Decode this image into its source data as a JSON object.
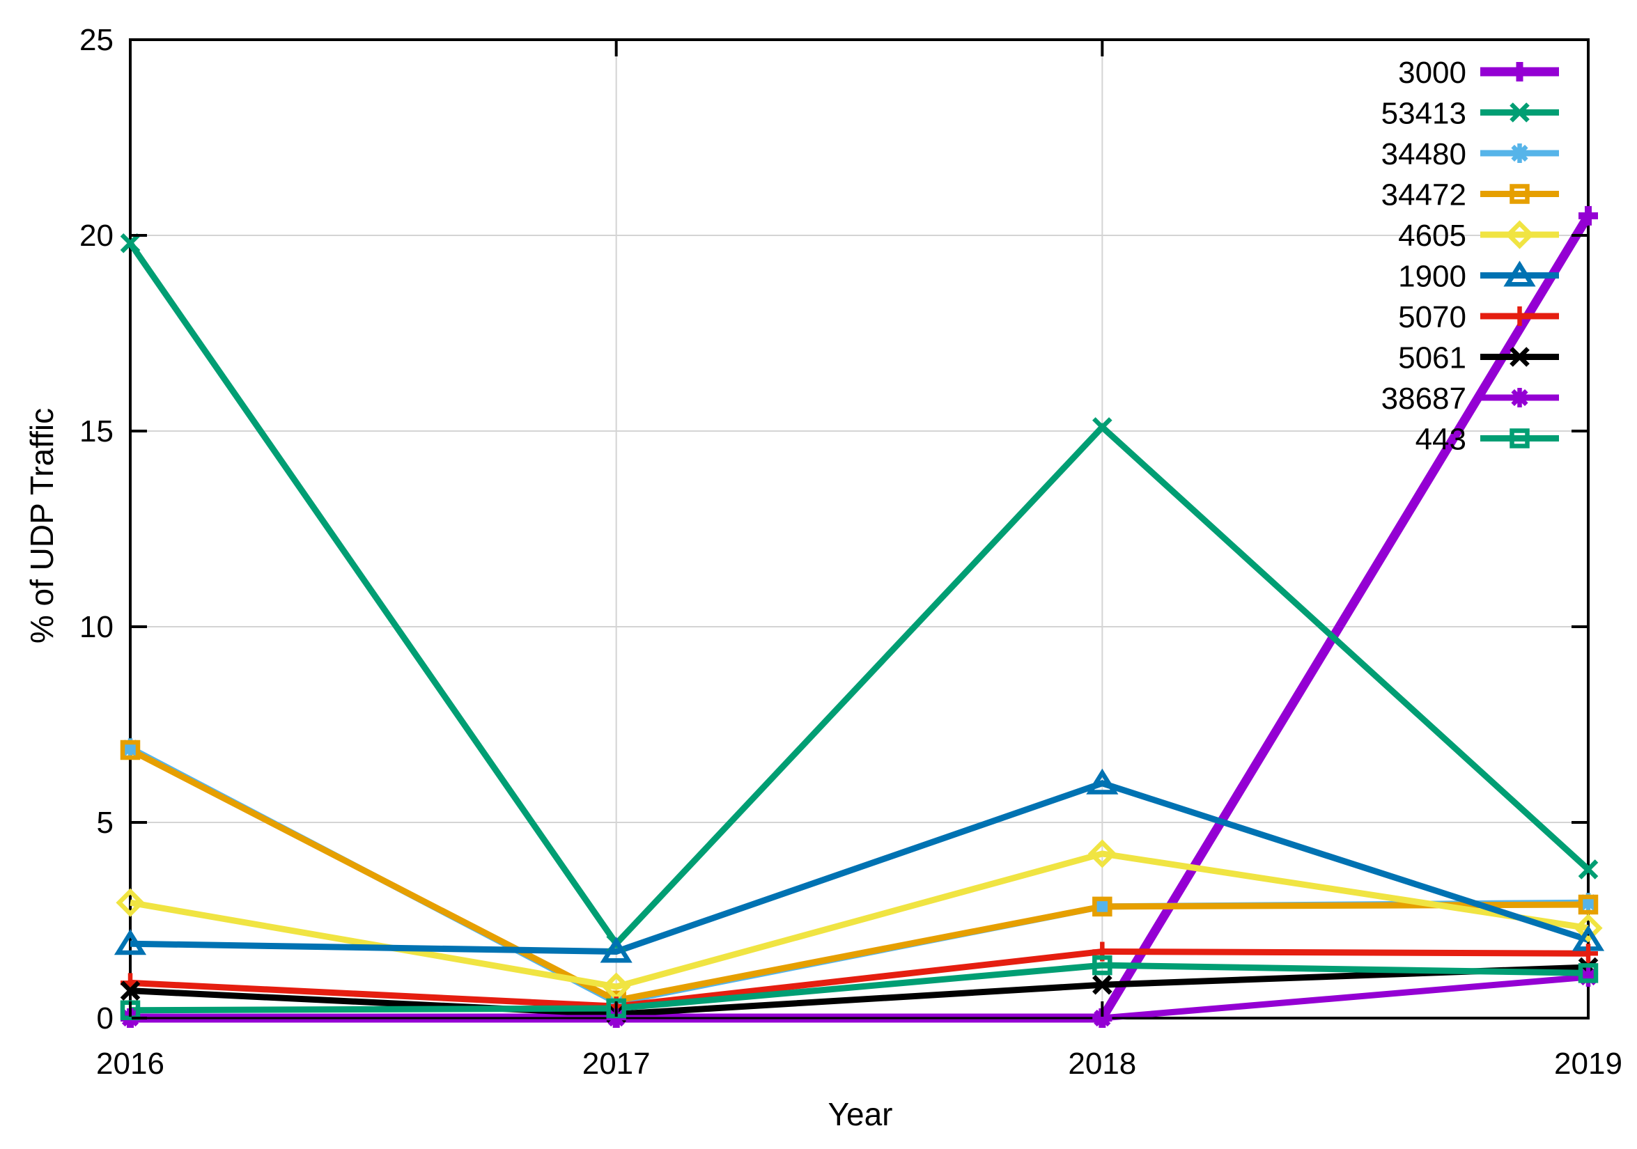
{
  "chart_data": {
    "type": "line",
    "x": [
      2016,
      2017,
      2018,
      2019
    ],
    "xlabel": "Year",
    "ylabel": "% of UDP Traffic",
    "ylim": [
      0,
      25
    ],
    "yticks": [
      0,
      5,
      10,
      15,
      20,
      25
    ],
    "xticks": [
      2016,
      2017,
      2018,
      2019
    ],
    "grid": true,
    "grid_color": "#d4d4d4",
    "border_color": "#000000",
    "legend_position": "top-right-inside",
    "series": [
      {
        "name": "3000",
        "color": "#9400D3",
        "marker": "plus",
        "linewidth": 13,
        "values": [
          0,
          0,
          0,
          20.5
        ]
      },
      {
        "name": "53413",
        "color": "#009E73",
        "marker": "cross",
        "linewidth": 9,
        "values": [
          19.8,
          1.9,
          15.1,
          3.8
        ]
      },
      {
        "name": "34480",
        "color": "#56B4E9",
        "marker": "asterisk",
        "linewidth": 9,
        "values": [
          6.9,
          0.4,
          2.85,
          2.95
        ]
      },
      {
        "name": "34472",
        "color": "#E69F00",
        "marker": "square",
        "linewidth": 9,
        "values": [
          6.85,
          0.45,
          2.85,
          2.9
        ]
      },
      {
        "name": "4605",
        "color": "#F0E442",
        "marker": "diamond",
        "linewidth": 9,
        "values": [
          2.95,
          0.8,
          4.2,
          2.3
        ]
      },
      {
        "name": "1900",
        "color": "#0072B2",
        "marker": "triangle",
        "linewidth": 9,
        "values": [
          1.9,
          1.7,
          6.0,
          2.0
        ]
      },
      {
        "name": "5070",
        "color": "#E51E10",
        "marker": "plus",
        "linewidth": 9,
        "values": [
          0.9,
          0.3,
          1.7,
          1.65
        ]
      },
      {
        "name": "5061",
        "color": "#000000",
        "marker": "cross",
        "linewidth": 9,
        "values": [
          0.7,
          0.1,
          0.85,
          1.3
        ]
      },
      {
        "name": "38687",
        "color": "#9400D3",
        "marker": "asterisk",
        "linewidth": 9,
        "values": [
          0,
          0,
          0,
          1.05
        ]
      },
      {
        "name": "443",
        "color": "#009E73",
        "marker": "square",
        "linewidth": 9,
        "values": [
          0.2,
          0.25,
          1.35,
          1.15
        ]
      }
    ]
  }
}
